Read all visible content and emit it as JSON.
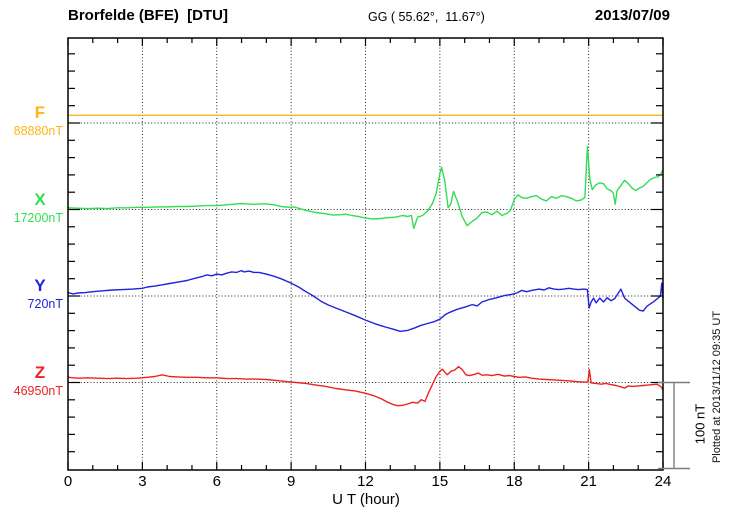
{
  "header": {
    "station": "Brorfelde (BFE)  [DTU]",
    "coords": "GG ( 55.62°,  11.67°)",
    "date": "2013/07/09"
  },
  "footer": {
    "plotted_at": "Plotted at 2013/11/12 09:35 UT"
  },
  "scale_bar": {
    "label": "100 nT",
    "nT": 100,
    "color": "#7d7d7d"
  },
  "chart_data": {
    "type": "line",
    "xlabel": "U T (hour)",
    "x_range": [
      0,
      24
    ],
    "x_ticks": [
      0,
      3,
      6,
      9,
      12,
      15,
      18,
      21,
      24
    ],
    "x_minor_step_hours": 1,
    "grid": "dotted vertical lines every 3 hours; dotted horizontal line at each channel baseline",
    "units": "points are [hour UT, offset in nT from channel baseline]",
    "channels": [
      {
        "id": "F",
        "label": "F",
        "baseline_label": "88880nT",
        "baseline_nT": 88880,
        "color": "#FFB418",
        "points": [
          [
            0,
            9
          ],
          [
            24,
            9
          ]
        ]
      },
      {
        "id": "X",
        "label": "X",
        "baseline_label": "17200nT",
        "baseline_nT": 17200,
        "color": "#33DD55",
        "points": [
          [
            0,
            2
          ],
          [
            0.4,
            1.5
          ],
          [
            0.8,
            1
          ],
          [
            1.2,
            1.5
          ],
          [
            1.6,
            1
          ],
          [
            2,
            2
          ],
          [
            2.4,
            2
          ],
          [
            2.8,
            2.5
          ],
          [
            3.2,
            2.5
          ],
          [
            3.6,
            3
          ],
          [
            4,
            3
          ],
          [
            4.4,
            3.5
          ],
          [
            4.8,
            3.5
          ],
          [
            5.2,
            4
          ],
          [
            5.6,
            4.5
          ],
          [
            6,
            4.5
          ],
          [
            6.4,
            5.5
          ],
          [
            6.8,
            6.5
          ],
          [
            7,
            7
          ],
          [
            7.2,
            6.5
          ],
          [
            7.5,
            6
          ],
          [
            7.8,
            6.5
          ],
          [
            8,
            6.5
          ],
          [
            8.3,
            5.5
          ],
          [
            8.6,
            3.5
          ],
          [
            8.9,
            2.5
          ],
          [
            9.1,
            3
          ],
          [
            9.35,
            1
          ],
          [
            9.6,
            -1
          ],
          [
            10,
            -3.5
          ],
          [
            10.4,
            -5
          ],
          [
            10.7,
            -6.5
          ],
          [
            11,
            -6
          ],
          [
            11.2,
            -5.5
          ],
          [
            11.45,
            -7
          ],
          [
            11.7,
            -8
          ],
          [
            12,
            -10
          ],
          [
            12.3,
            -11
          ],
          [
            12.6,
            -10.5
          ],
          [
            12.9,
            -9.5
          ],
          [
            13.2,
            -9
          ],
          [
            13.5,
            -7
          ],
          [
            13.7,
            -8
          ],
          [
            13.85,
            -7
          ],
          [
            13.95,
            -22
          ],
          [
            14.1,
            -9
          ],
          [
            14.3,
            -7
          ],
          [
            14.5,
            -2
          ],
          [
            14.7,
            7
          ],
          [
            14.85,
            19
          ],
          [
            15,
            42
          ],
          [
            15.07,
            49
          ],
          [
            15.2,
            33
          ],
          [
            15.33,
            2
          ],
          [
            15.45,
            7
          ],
          [
            15.55,
            21
          ],
          [
            15.7,
            10
          ],
          [
            15.9,
            -8
          ],
          [
            16.1,
            -19
          ],
          [
            16.3,
            -14
          ],
          [
            16.5,
            -10
          ],
          [
            16.7,
            -3.5
          ],
          [
            16.9,
            -3
          ],
          [
            17.1,
            -6
          ],
          [
            17.3,
            -2
          ],
          [
            17.5,
            -7
          ],
          [
            17.7,
            -4.5
          ],
          [
            17.85,
            -1
          ],
          [
            18,
            12
          ],
          [
            18.15,
            17
          ],
          [
            18.3,
            14
          ],
          [
            18.5,
            13
          ],
          [
            18.7,
            15
          ],
          [
            18.9,
            16
          ],
          [
            19.1,
            12
          ],
          [
            19.3,
            10
          ],
          [
            19.5,
            15
          ],
          [
            19.7,
            13
          ],
          [
            19.9,
            16
          ],
          [
            20.1,
            15
          ],
          [
            20.3,
            13
          ],
          [
            20.5,
            10
          ],
          [
            20.7,
            11
          ],
          [
            20.85,
            14
          ],
          [
            20.95,
            73
          ],
          [
            21.05,
            35
          ],
          [
            21.15,
            23
          ],
          [
            21.3,
            29
          ],
          [
            21.45,
            31
          ],
          [
            21.6,
            30
          ],
          [
            21.75,
            24
          ],
          [
            21.9,
            22
          ],
          [
            22,
            19
          ],
          [
            22.07,
            6
          ],
          [
            22.15,
            22
          ],
          [
            22.3,
            28
          ],
          [
            22.45,
            34
          ],
          [
            22.6,
            30
          ],
          [
            22.75,
            25
          ],
          [
            22.9,
            22
          ],
          [
            23.05,
            25
          ],
          [
            23.2,
            27
          ],
          [
            23.35,
            31
          ],
          [
            23.5,
            35
          ],
          [
            23.65,
            37
          ],
          [
            23.8,
            38
          ],
          [
            23.9,
            41
          ],
          [
            24,
            46
          ]
        ]
      },
      {
        "id": "Y",
        "label": "Y",
        "baseline_label": "720nT",
        "baseline_nT": 720,
        "color": "#2222DD",
        "points": [
          [
            0,
            4
          ],
          [
            0.2,
            2.5
          ],
          [
            0.4,
            3.5
          ],
          [
            0.7,
            4
          ],
          [
            1,
            5
          ],
          [
            1.4,
            6
          ],
          [
            1.8,
            7
          ],
          [
            2.2,
            7.5
          ],
          [
            2.6,
            8
          ],
          [
            3,
            9
          ],
          [
            3.2,
            10.5
          ],
          [
            3.5,
            11.5
          ],
          [
            3.8,
            13
          ],
          [
            4.1,
            14.5
          ],
          [
            4.5,
            16.5
          ],
          [
            4.8,
            18
          ],
          [
            5.1,
            20.5
          ],
          [
            5.4,
            22.5
          ],
          [
            5.6,
            24.5
          ],
          [
            5.8,
            23.5
          ],
          [
            6,
            25.5
          ],
          [
            6.2,
            24.5
          ],
          [
            6.4,
            26.5
          ],
          [
            6.6,
            28
          ],
          [
            6.8,
            27.5
          ],
          [
            7,
            29.5
          ],
          [
            7.1,
            28
          ],
          [
            7.3,
            29
          ],
          [
            7.5,
            27.5
          ],
          [
            7.7,
            27.5
          ],
          [
            8,
            25.5
          ],
          [
            8.3,
            23
          ],
          [
            8.6,
            20
          ],
          [
            9,
            15
          ],
          [
            9.3,
            10.5
          ],
          [
            9.6,
            5
          ],
          [
            9.9,
            0
          ],
          [
            10.2,
            -6
          ],
          [
            10.5,
            -10.5
          ],
          [
            10.8,
            -14
          ],
          [
            11.2,
            -18.5
          ],
          [
            11.6,
            -23
          ],
          [
            12,
            -28
          ],
          [
            12.4,
            -32.5
          ],
          [
            12.8,
            -36
          ],
          [
            13.1,
            -38.5
          ],
          [
            13.4,
            -41
          ],
          [
            13.7,
            -40
          ],
          [
            14,
            -37
          ],
          [
            14.2,
            -34.5
          ],
          [
            14.5,
            -32
          ],
          [
            14.8,
            -29.5
          ],
          [
            15,
            -27
          ],
          [
            15.2,
            -22
          ],
          [
            15.4,
            -19
          ],
          [
            15.7,
            -15.5
          ],
          [
            16,
            -13
          ],
          [
            16.3,
            -10
          ],
          [
            16.5,
            -11.5
          ],
          [
            16.7,
            -7
          ],
          [
            17,
            -4
          ],
          [
            17.3,
            -2
          ],
          [
            17.6,
            0.5
          ],
          [
            17.9,
            2
          ],
          [
            18.1,
            3.5
          ],
          [
            18.3,
            6.5
          ],
          [
            18.5,
            5
          ],
          [
            18.7,
            6.5
          ],
          [
            19,
            8
          ],
          [
            19.2,
            7
          ],
          [
            19.4,
            9.5
          ],
          [
            19.6,
            8
          ],
          [
            19.8,
            7.5
          ],
          [
            20,
            8
          ],
          [
            20.2,
            9
          ],
          [
            20.4,
            8
          ],
          [
            20.6,
            7.5
          ],
          [
            20.8,
            8
          ],
          [
            20.95,
            7.5
          ],
          [
            21.02,
            -14
          ],
          [
            21.1,
            -7
          ],
          [
            21.2,
            -2.5
          ],
          [
            21.3,
            -8
          ],
          [
            21.45,
            -2.5
          ],
          [
            21.6,
            -7
          ],
          [
            21.75,
            -2
          ],
          [
            21.9,
            -5.5
          ],
          [
            22.05,
            -3
          ],
          [
            22.2,
            3.5
          ],
          [
            22.3,
            8
          ],
          [
            22.45,
            -2.5
          ],
          [
            22.6,
            -6
          ],
          [
            22.75,
            -9.5
          ],
          [
            22.9,
            -13
          ],
          [
            23.05,
            -16.5
          ],
          [
            23.2,
            -17.5
          ],
          [
            23.35,
            -12
          ],
          [
            23.5,
            -9
          ],
          [
            23.65,
            -6
          ],
          [
            23.8,
            -2.5
          ],
          [
            23.9,
            0
          ],
          [
            23.95,
            15
          ],
          [
            24,
            -2.5
          ]
        ]
      },
      {
        "id": "Z",
        "label": "Z",
        "baseline_label": "46950nT",
        "baseline_nT": 46950,
        "color": "#EE2222",
        "points": [
          [
            0,
            6
          ],
          [
            0.4,
            5
          ],
          [
            0.8,
            5.5
          ],
          [
            1.2,
            5
          ],
          [
            1.6,
            4.5
          ],
          [
            2,
            5
          ],
          [
            2.4,
            4.5
          ],
          [
            2.8,
            5
          ],
          [
            3.2,
            6
          ],
          [
            3.5,
            7
          ],
          [
            3.8,
            9
          ],
          [
            4.1,
            7
          ],
          [
            4.4,
            6.5
          ],
          [
            4.8,
            6
          ],
          [
            5.2,
            6
          ],
          [
            5.6,
            5.5
          ],
          [
            6,
            5.5
          ],
          [
            6.4,
            4.5
          ],
          [
            6.8,
            4.5
          ],
          [
            7.2,
            4
          ],
          [
            7.6,
            4
          ],
          [
            8,
            3.5
          ],
          [
            8.4,
            2.5
          ],
          [
            8.8,
            1
          ],
          [
            9.2,
            0
          ],
          [
            9.6,
            -1
          ],
          [
            10,
            -3
          ],
          [
            10.4,
            -4.5
          ],
          [
            10.8,
            -7
          ],
          [
            11.2,
            -8.5
          ],
          [
            11.6,
            -10
          ],
          [
            12,
            -12.5
          ],
          [
            12.3,
            -15
          ],
          [
            12.6,
            -18.5
          ],
          [
            12.9,
            -23
          ],
          [
            13.1,
            -25.5
          ],
          [
            13.3,
            -27
          ],
          [
            13.5,
            -26.5
          ],
          [
            13.7,
            -25
          ],
          [
            13.9,
            -23
          ],
          [
            14.1,
            -24
          ],
          [
            14.25,
            -20
          ],
          [
            14.4,
            -22
          ],
          [
            14.55,
            -11.5
          ],
          [
            14.7,
            -2.5
          ],
          [
            14.85,
            7
          ],
          [
            15,
            13
          ],
          [
            15.1,
            15.5
          ],
          [
            15.2,
            12
          ],
          [
            15.3,
            9
          ],
          [
            15.45,
            13
          ],
          [
            15.6,
            14.5
          ],
          [
            15.75,
            18.5
          ],
          [
            15.9,
            15
          ],
          [
            16.05,
            9
          ],
          [
            16.2,
            8
          ],
          [
            16.4,
            9.5
          ],
          [
            16.55,
            11
          ],
          [
            16.7,
            8.5
          ],
          [
            16.9,
            9
          ],
          [
            17.1,
            8
          ],
          [
            17.35,
            9.5
          ],
          [
            17.6,
            7.5
          ],
          [
            17.8,
            8
          ],
          [
            18,
            7
          ],
          [
            18.2,
            6
          ],
          [
            18.45,
            6.5
          ],
          [
            18.7,
            5
          ],
          [
            19,
            4
          ],
          [
            19.3,
            3.5
          ],
          [
            19.6,
            3
          ],
          [
            19.9,
            2.5
          ],
          [
            20.2,
            2
          ],
          [
            20.5,
            1
          ],
          [
            20.8,
            0.5
          ],
          [
            20.97,
            0.5
          ],
          [
            21.03,
            15
          ],
          [
            21.1,
            -0.5
          ],
          [
            21.3,
            -1
          ],
          [
            21.5,
            -2
          ],
          [
            21.7,
            -1
          ],
          [
            21.9,
            -2.5
          ],
          [
            22.1,
            -3.5
          ],
          [
            22.3,
            -5
          ],
          [
            22.45,
            -6.5
          ],
          [
            22.6,
            -4
          ],
          [
            22.8,
            -4.5
          ],
          [
            23,
            -4
          ],
          [
            23.2,
            -3.5
          ],
          [
            23.4,
            -3
          ],
          [
            23.6,
            -2.5
          ],
          [
            23.75,
            -2
          ],
          [
            23.85,
            -3.5
          ],
          [
            23.95,
            -6
          ],
          [
            24,
            -9
          ]
        ]
      }
    ]
  }
}
